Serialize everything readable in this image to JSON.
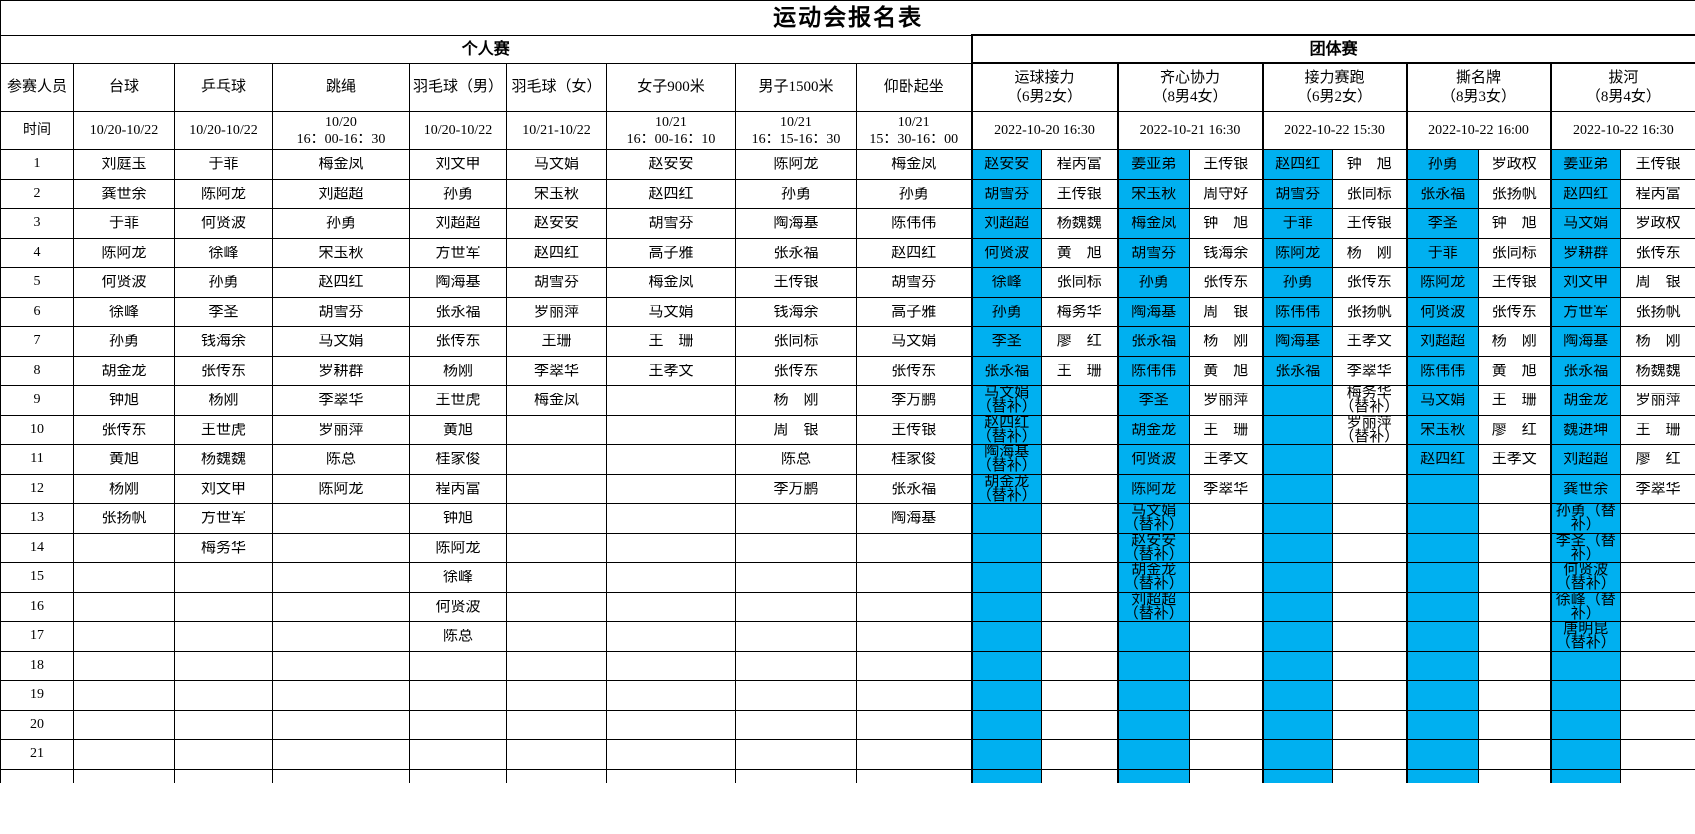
{
  "title": "运动会报名表",
  "sections": {
    "individual": "个人赛",
    "team": "团体赛"
  },
  "corner": {
    "participants": "参赛人员",
    "time": "时间"
  },
  "row_numbers": [
    "1",
    "2",
    "3",
    "4",
    "5",
    "6",
    "7",
    "8",
    "9",
    "10",
    "11",
    "12",
    "13",
    "14",
    "15",
    "16",
    "17",
    "18",
    "19",
    "20",
    "21"
  ],
  "colors": {
    "highlight": "#00B0F0"
  },
  "individual_events": [
    {
      "name": "台球",
      "time": "10/20-10/22",
      "players": [
        "刘庭玉",
        "龚世余",
        "于菲",
        "陈阿龙",
        "何贤波",
        "徐峰",
        "孙勇",
        "胡金龙",
        "钟旭",
        "张传东",
        "黄旭",
        "杨刚",
        "张扬帆"
      ]
    },
    {
      "name": "乒乓球",
      "time": "10/20-10/22",
      "players": [
        "于菲",
        "陈阿龙",
        "何贤波",
        "徐峰",
        "孙勇",
        "李圣",
        "钱海余",
        "张传东",
        "杨刚",
        "王世虎",
        "杨魏魏",
        "刘文甲",
        "方世军",
        "梅务华"
      ]
    },
    {
      "name": "跳绳",
      "time": "10/20\n16：00-16：30",
      "players": [
        "梅金凤",
        "刘超超",
        "孙勇",
        "宋玉秋",
        "赵四红",
        "胡雪芬",
        "马文娟",
        "罗耕群",
        "李翠华",
        "罗丽萍",
        "陈总",
        "陈阿龙"
      ]
    },
    {
      "name": "羽毛球（男）",
      "time": "10/20-10/22",
      "players": [
        "刘文甲",
        "孙勇",
        "刘超超",
        "方世军",
        "陶海基",
        "张永福",
        "张传东",
        "杨刚",
        "王世虎",
        "黄旭",
        "桂家俊",
        "程丙富",
        "钟旭",
        "陈阿龙",
        "徐峰",
        "何贤波",
        "陈总"
      ]
    },
    {
      "name": "羽毛球（女）",
      "time": "10/21-10/22",
      "players": [
        "马文娟",
        "宋玉秋",
        "赵安安",
        "赵四红",
        "胡雪芬",
        "罗丽萍",
        "王珊",
        "李翠华",
        "梅金凤"
      ]
    },
    {
      "name": "女子900米",
      "time": "10/21\n16：00-16：10",
      "players": [
        "赵安安",
        "赵四红",
        "胡雪芬",
        "高子雅",
        "梅金凤",
        "马文娟",
        "王　珊",
        "王孝文"
      ]
    },
    {
      "name": "男子1500米",
      "time": "10/21\n16：15-16：30",
      "players": [
        "陈阿龙",
        "孙勇",
        "陶海基",
        "张永福",
        "王传银",
        "钱海余",
        "张同标",
        "张传东",
        "杨　刚",
        "周　银",
        "陈总",
        "李万鹏"
      ]
    },
    {
      "name": "仰卧起坐",
      "time": "10/21\n15：30-16：00",
      "players": [
        "梅金凤",
        "孙勇",
        "陈伟伟",
        "赵四红",
        "胡雪芬",
        "高子雅",
        "马文娟",
        "张传东",
        "李万鹏",
        "王传银",
        "桂家俊",
        "张永福",
        "陶海基"
      ]
    }
  ],
  "team_events": [
    {
      "name": "运球接力\n（6男2女）",
      "time": "2022-10-20 16:30",
      "main": [
        "赵安安",
        "胡雪芬",
        "刘超超",
        "何贤波",
        "徐峰",
        "孙勇",
        "李圣",
        "张永福",
        "马文娟（替补）",
        "赵四红（替补）",
        "陶海基（替补）",
        "胡金龙（替补）"
      ],
      "second": [
        "程丙富",
        "王传银",
        "杨魏魏",
        "黄　旭",
        "张同标",
        "梅务华",
        "廖　红",
        "王　珊"
      ]
    },
    {
      "name": "齐心协力\n（8男4女）",
      "time": "2022-10-21 16:30",
      "main": [
        "姜亚弟",
        "宋玉秋",
        "梅金凤",
        "胡雪芬",
        "孙勇",
        "陶海基",
        "张永福",
        "陈伟伟",
        "李圣",
        "胡金龙",
        "何贤波",
        "陈阿龙",
        "马文娟（替补）",
        "赵安安（替补）",
        "胡金龙（替补）",
        "刘超超（替补）"
      ],
      "second": [
        "王传银",
        "周守好",
        "钟　旭",
        "钱海余",
        "张传东",
        "周　银",
        "杨　刚",
        "黄　旭",
        "罗丽萍",
        "王　珊",
        "王孝文",
        "李翠华"
      ]
    },
    {
      "name": "接力赛跑\n（6男2女）",
      "time": "2022-10-22 15:30",
      "main": [
        "赵四红",
        "胡雪芬",
        "于菲",
        "陈阿龙",
        "孙勇",
        "陈伟伟",
        "陶海基",
        "张永福"
      ],
      "second": [
        "钟　旭",
        "张同标",
        "王传银",
        "杨　刚",
        "张传东",
        "张扬帆",
        "王孝文",
        "李翠华",
        "梅务华（替补）",
        "罗丽萍（替补）"
      ]
    },
    {
      "name": "撕名牌\n（8男3女）",
      "time": "2022-10-22 16:00",
      "main": [
        "孙勇",
        "张永福",
        "李圣",
        "于菲",
        "陈阿龙",
        "何贤波",
        "刘超超",
        "陈伟伟",
        "马文娟",
        "宋玉秋",
        "赵四红"
      ],
      "second": [
        "罗政权",
        "张扬帆",
        "钟　旭",
        "张同标",
        "王传银",
        "张传东",
        "杨　刚",
        "黄　旭",
        "王　珊",
        "廖　红",
        "王孝文"
      ]
    },
    {
      "name": "拔河\n（8男4女）",
      "time": "2022-10-22 16:30",
      "main": [
        "姜亚弟",
        "赵四红",
        "马文娟",
        "罗耕群",
        "刘文甲",
        "方世军",
        "陶海基",
        "张永福",
        "胡金龙",
        "魏进坤",
        "刘超超",
        "龚世余",
        "孙勇（替补）",
        "李圣（替补）",
        "何贤波（替补）",
        "徐峰（替补）",
        "唐明昆（替补）"
      ],
      "second": [
        "王传银",
        "程丙富",
        "罗政权",
        "张传东",
        "周　银",
        "张扬帆",
        "杨　刚",
        "杨魏魏",
        "罗丽萍",
        "王　珊",
        "廖　红",
        "李翠华"
      ]
    }
  ]
}
